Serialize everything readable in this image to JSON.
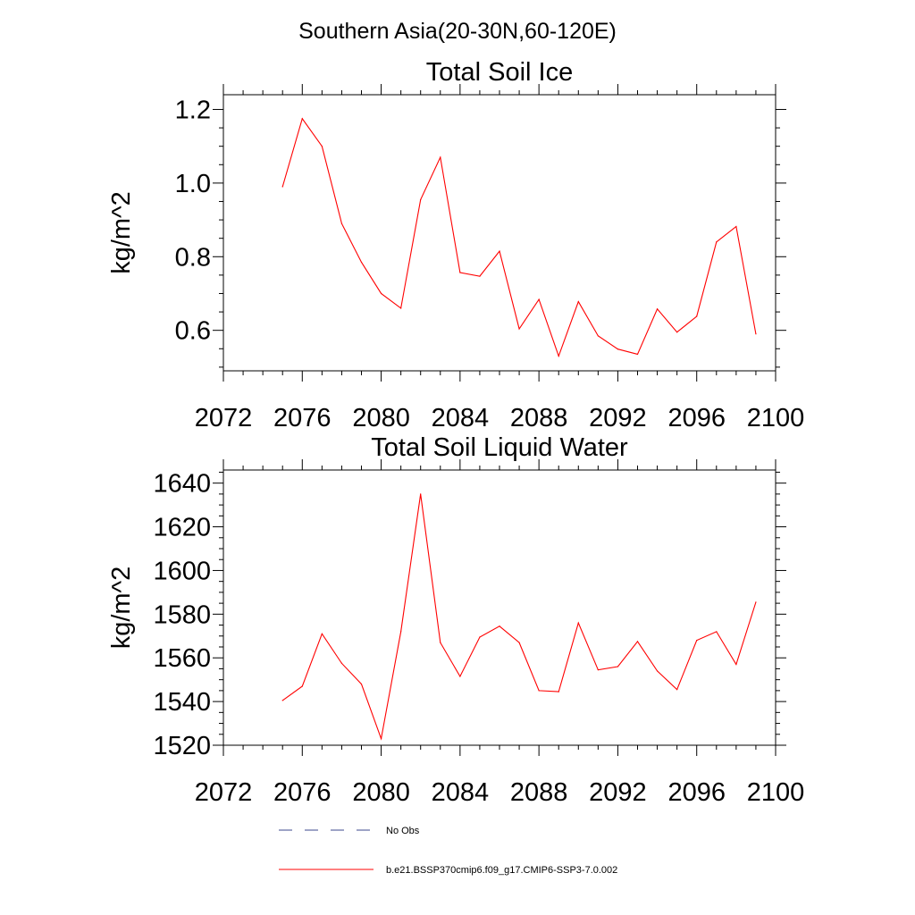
{
  "figure": {
    "title": "Southern Asia(20-30N,60-120E)"
  },
  "chart_data": [
    {
      "type": "line",
      "title": "Total Soil Ice",
      "xlabel": "",
      "ylabel": "kg/m^2",
      "xlim": [
        2072,
        2100
      ],
      "ylim": [
        0.49,
        1.24
      ],
      "x_ticks": [
        "2072",
        "2076",
        "2080",
        "2084",
        "2088",
        "2092",
        "2096",
        "2100"
      ],
      "y_ticks": [
        "0.6",
        "0.8",
        "1.0",
        "1.2"
      ],
      "grid": false,
      "series": [
        {
          "name": "b.e21.BSSP370cmip6.f09_g17.CMIP6-SSP3-7.0.002",
          "color": "#ff0000",
          "x": [
            2075,
            2076,
            2077,
            2078,
            2079,
            2080,
            2081,
            2082,
            2083,
            2084,
            2085,
            2086,
            2087,
            2088,
            2089,
            2090,
            2091,
            2092,
            2093,
            2094,
            2095,
            2096,
            2097,
            2098,
            2099
          ],
          "values": [
            0.99,
            1.175,
            1.1,
            0.89,
            0.785,
            0.7,
            0.66,
            0.955,
            1.07,
            0.757,
            0.747,
            0.815,
            0.604,
            0.684,
            0.53,
            0.678,
            0.585,
            0.549,
            0.535,
            0.658,
            0.595,
            0.638,
            0.84,
            0.882,
            0.59
          ]
        }
      ]
    },
    {
      "type": "line",
      "title": "Total Soil Liquid Water",
      "xlabel": "",
      "ylabel": "kg/m^2",
      "xlim": [
        2072,
        2100
      ],
      "ylim": [
        1520,
        1646
      ],
      "x_ticks": [
        "2072",
        "2076",
        "2080",
        "2084",
        "2088",
        "2092",
        "2096",
        "2100"
      ],
      "y_ticks": [
        "1520",
        "1540",
        "1560",
        "1580",
        "1600",
        "1620",
        "1640"
      ],
      "grid": false,
      "series": [
        {
          "name": "b.e21.BSSP370cmip6.f09_g17.CMIP6-SSP3-7.0.002",
          "color": "#ff0000",
          "x": [
            2075,
            2076,
            2077,
            2078,
            2079,
            2080,
            2081,
            2082,
            2083,
            2084,
            2085,
            2086,
            2087,
            2088,
            2089,
            2090,
            2091,
            2092,
            2093,
            2094,
            2095,
            2096,
            2097,
            2098,
            2099
          ],
          "values": [
            1540.5,
            1547,
            1571,
            1557.5,
            1548,
            1523,
            1572,
            1635,
            1567,
            1551.5,
            1569.5,
            1574.5,
            1567,
            1545,
            1544.5,
            1576,
            1554.5,
            1556,
            1567.5,
            1554,
            1545.5,
            1568,
            1572,
            1557,
            1585.5
          ]
        }
      ]
    }
  ],
  "legend": {
    "placement": "bottom",
    "items": [
      {
        "label": "No Obs",
        "color": "#3d4a8c",
        "style": "dashed"
      },
      {
        "label": "b.e21.BSSP370cmip6.f09_g17.CMIP6-SSP3-7.0.002",
        "color": "#ff0000",
        "style": "solid"
      }
    ]
  }
}
